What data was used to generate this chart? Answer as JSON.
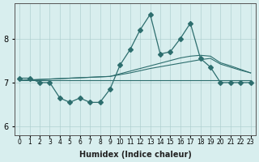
{
  "title": "",
  "xlabel": "Humidex (Indice chaleur)",
  "x": [
    0,
    1,
    2,
    3,
    4,
    5,
    6,
    7,
    8,
    9,
    10,
    11,
    12,
    13,
    14,
    15,
    16,
    17,
    18,
    19,
    20,
    21,
    22,
    23
  ],
  "y_main": [
    7.1,
    7.1,
    7.0,
    7.0,
    6.65,
    6.55,
    6.65,
    6.55,
    6.55,
    6.85,
    7.4,
    7.75,
    8.2,
    8.55,
    7.65,
    7.7,
    8.0,
    8.35,
    7.55,
    7.35,
    7.0,
    7.0,
    7.0,
    7.0
  ],
  "y_trend1": [
    7.05,
    7.06,
    7.07,
    7.08,
    7.09,
    7.1,
    7.11,
    7.12,
    7.13,
    7.14,
    7.18,
    7.22,
    7.27,
    7.32,
    7.36,
    7.4,
    7.44,
    7.48,
    7.52,
    7.55,
    7.42,
    7.35,
    7.28,
    7.22
  ],
  "y_trend2": [
    7.05,
    7.06,
    7.07,
    7.08,
    7.09,
    7.1,
    7.11,
    7.12,
    7.13,
    7.14,
    7.2,
    7.26,
    7.32,
    7.38,
    7.44,
    7.5,
    7.56,
    7.6,
    7.62,
    7.6,
    7.45,
    7.38,
    7.3,
    7.22
  ],
  "y_flat": [
    7.05,
    7.05,
    7.05,
    7.05,
    7.05,
    7.05,
    7.05,
    7.05,
    7.05,
    7.05,
    7.05,
    7.05,
    7.05,
    7.05,
    7.05,
    7.05,
    7.05,
    7.05,
    7.05,
    7.05,
    7.05,
    7.05,
    7.05,
    7.05
  ],
  "line_color": "#2d6e6e",
  "bg_color": "#d8eeee",
  "grid_color": "#b0d0d0",
  "ylim": [
    5.8,
    8.8
  ],
  "yticks": [
    6,
    7,
    8
  ],
  "marker": "D",
  "marker_size": 3
}
